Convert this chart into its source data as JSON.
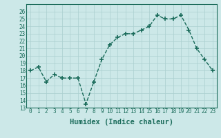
{
  "x": [
    0,
    1,
    2,
    3,
    4,
    5,
    6,
    7,
    8,
    9,
    10,
    11,
    12,
    13,
    14,
    15,
    16,
    17,
    18,
    19,
    20,
    21,
    22,
    23
  ],
  "y": [
    18,
    18.5,
    16.5,
    17.5,
    17,
    17,
    17,
    13.5,
    16.5,
    19.5,
    21.5,
    22.5,
    23,
    23,
    23.5,
    24,
    25.5,
    25,
    25,
    25.5,
    23.5,
    21,
    19.5,
    18
  ],
  "line_color": "#1a6b5a",
  "marker_color": "#1a6b5a",
  "bg_color": "#cce8e8",
  "grid_color": "#aacfcf",
  "xlabel": "Humidex (Indice chaleur)",
  "ylim": [
    13,
    27
  ],
  "xlim": [
    -0.5,
    23.5
  ],
  "yticks": [
    13,
    14,
    15,
    16,
    17,
    18,
    19,
    20,
    21,
    22,
    23,
    24,
    25,
    26
  ],
  "xticks": [
    0,
    1,
    2,
    3,
    4,
    5,
    6,
    7,
    8,
    9,
    10,
    11,
    12,
    13,
    14,
    15,
    16,
    17,
    18,
    19,
    20,
    21,
    22,
    23
  ],
  "tick_label_fontsize": 5.5,
  "xlabel_fontsize": 7.5,
  "line_width": 1.0,
  "marker_size": 4
}
